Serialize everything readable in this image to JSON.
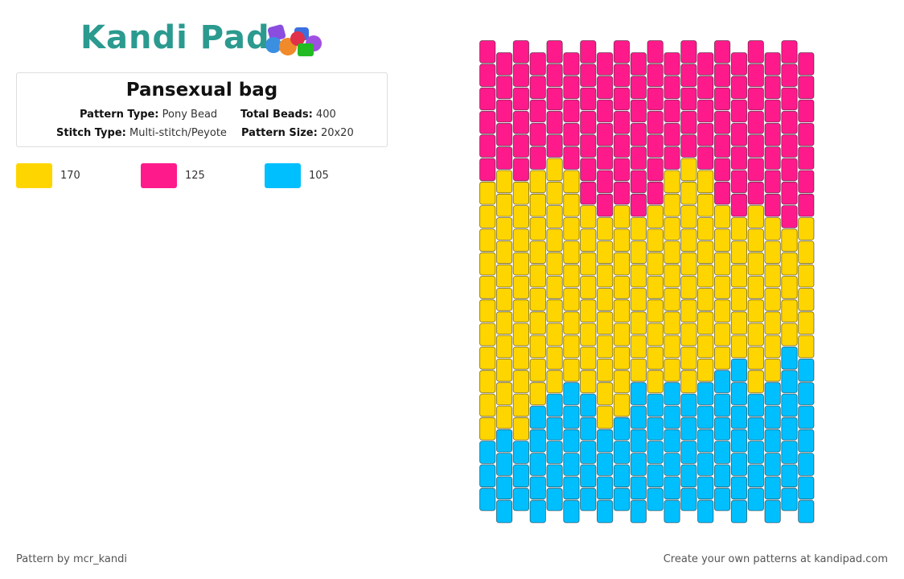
{
  "logo": "Kandi Pad",
  "title": "Pansexual bag",
  "details": [
    {
      "label": "Pattern Type:",
      "value": "Pony Bead"
    },
    {
      "label": "Total Beads:",
      "value": "400"
    },
    {
      "label": "Stitch Type:",
      "value": "Multi-stitch/Peyote"
    },
    {
      "label": "Pattern Size:",
      "value": "20x20"
    }
  ],
  "legend": [
    {
      "color": "#ffd500",
      "count": 170
    },
    {
      "color": "#ff1a8c",
      "count": 125
    },
    {
      "color": "#00bfff",
      "count": 105
    }
  ],
  "stripe_colors": [
    "#ff1a8c",
    "#ffd500",
    "#00bfff"
  ],
  "column_runs": [
    [
      6,
      11,
      3
    ],
    [
      5,
      11,
      4
    ],
    [
      6,
      11,
      3
    ],
    [
      5,
      10,
      5
    ],
    [
      5,
      10,
      5
    ],
    [
      5,
      9,
      6
    ],
    [
      7,
      8,
      5
    ],
    [
      7,
      9,
      4
    ],
    [
      7,
      9,
      4
    ],
    [
      7,
      7,
      6
    ],
    [
      7,
      8,
      5
    ],
    [
      5,
      9,
      6
    ],
    [
      5,
      10,
      5
    ],
    [
      5,
      9,
      6
    ],
    [
      7,
      7,
      6
    ],
    [
      7,
      6,
      7
    ],
    [
      7,
      8,
      5
    ],
    [
      7,
      7,
      6
    ],
    [
      8,
      5,
      7
    ],
    [
      7,
      6,
      7
    ]
  ],
  "footer_left": "Pattern by mcr_kandi",
  "footer_right": "Create your own patterns at kandipad.com"
}
